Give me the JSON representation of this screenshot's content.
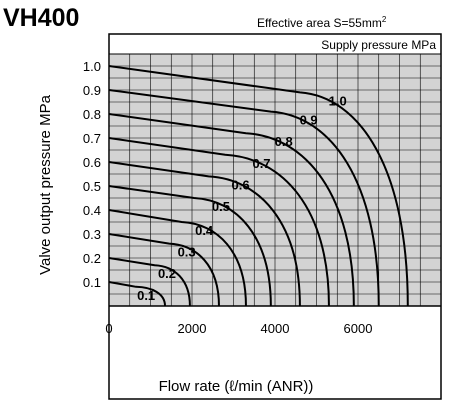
{
  "model": "VH400",
  "effective_area": "Effective area S=55mm",
  "effective_area_sup": "2",
  "chart_data": {
    "type": "line",
    "title": "",
    "xlabel": "Flow rate (ℓ/min (ANR))",
    "ylabel": "Valve output pressure MPa",
    "legend_title": "Supply pressure MPa",
    "xlim": [
      0,
      8000
    ],
    "ylim": [
      0,
      1.05
    ],
    "x_ticks": [
      "0",
      "2000",
      "4000",
      "6000"
    ],
    "x_tick_values": [
      0,
      2000,
      4000,
      6000
    ],
    "y_ticks": [
      "0.1",
      "0.2",
      "0.3",
      "0.4",
      "0.5",
      "0.6",
      "0.7",
      "0.8",
      "0.9",
      "1.0"
    ],
    "y_tick_values": [
      0.1,
      0.2,
      0.3,
      0.4,
      0.5,
      0.6,
      0.7,
      0.8,
      0.9,
      1.0
    ],
    "grid": true,
    "series": [
      {
        "name": "0.1",
        "p0": 0.1,
        "p_knee": 0.08,
        "x_knee": 650,
        "x_max": 1350
      },
      {
        "name": "0.2",
        "p0": 0.2,
        "p_knee": 0.17,
        "x_knee": 1100,
        "x_max": 1950
      },
      {
        "name": "0.3",
        "p0": 0.3,
        "p_knee": 0.26,
        "x_knee": 1450,
        "x_max": 2650
      },
      {
        "name": "0.4",
        "p0": 0.4,
        "p_knee": 0.35,
        "x_knee": 1750,
        "x_max": 3300
      },
      {
        "name": "0.5",
        "p0": 0.5,
        "p_knee": 0.45,
        "x_knee": 2050,
        "x_max": 3900
      },
      {
        "name": "0.6",
        "p0": 0.6,
        "p_knee": 0.54,
        "x_knee": 2400,
        "x_max": 4600
      },
      {
        "name": "0.7",
        "p0": 0.7,
        "p_knee": 0.63,
        "x_knee": 2800,
        "x_max": 5300
      },
      {
        "name": "0.8",
        "p0": 0.8,
        "p_knee": 0.72,
        "x_knee": 3300,
        "x_max": 5900
      },
      {
        "name": "0.9",
        "p0": 0.9,
        "p_knee": 0.81,
        "x_knee": 3900,
        "x_max": 6500
      },
      {
        "name": "1.0",
        "p0": 1.0,
        "p_knee": 0.89,
        "x_knee": 4600,
        "x_max": 7200
      }
    ]
  }
}
